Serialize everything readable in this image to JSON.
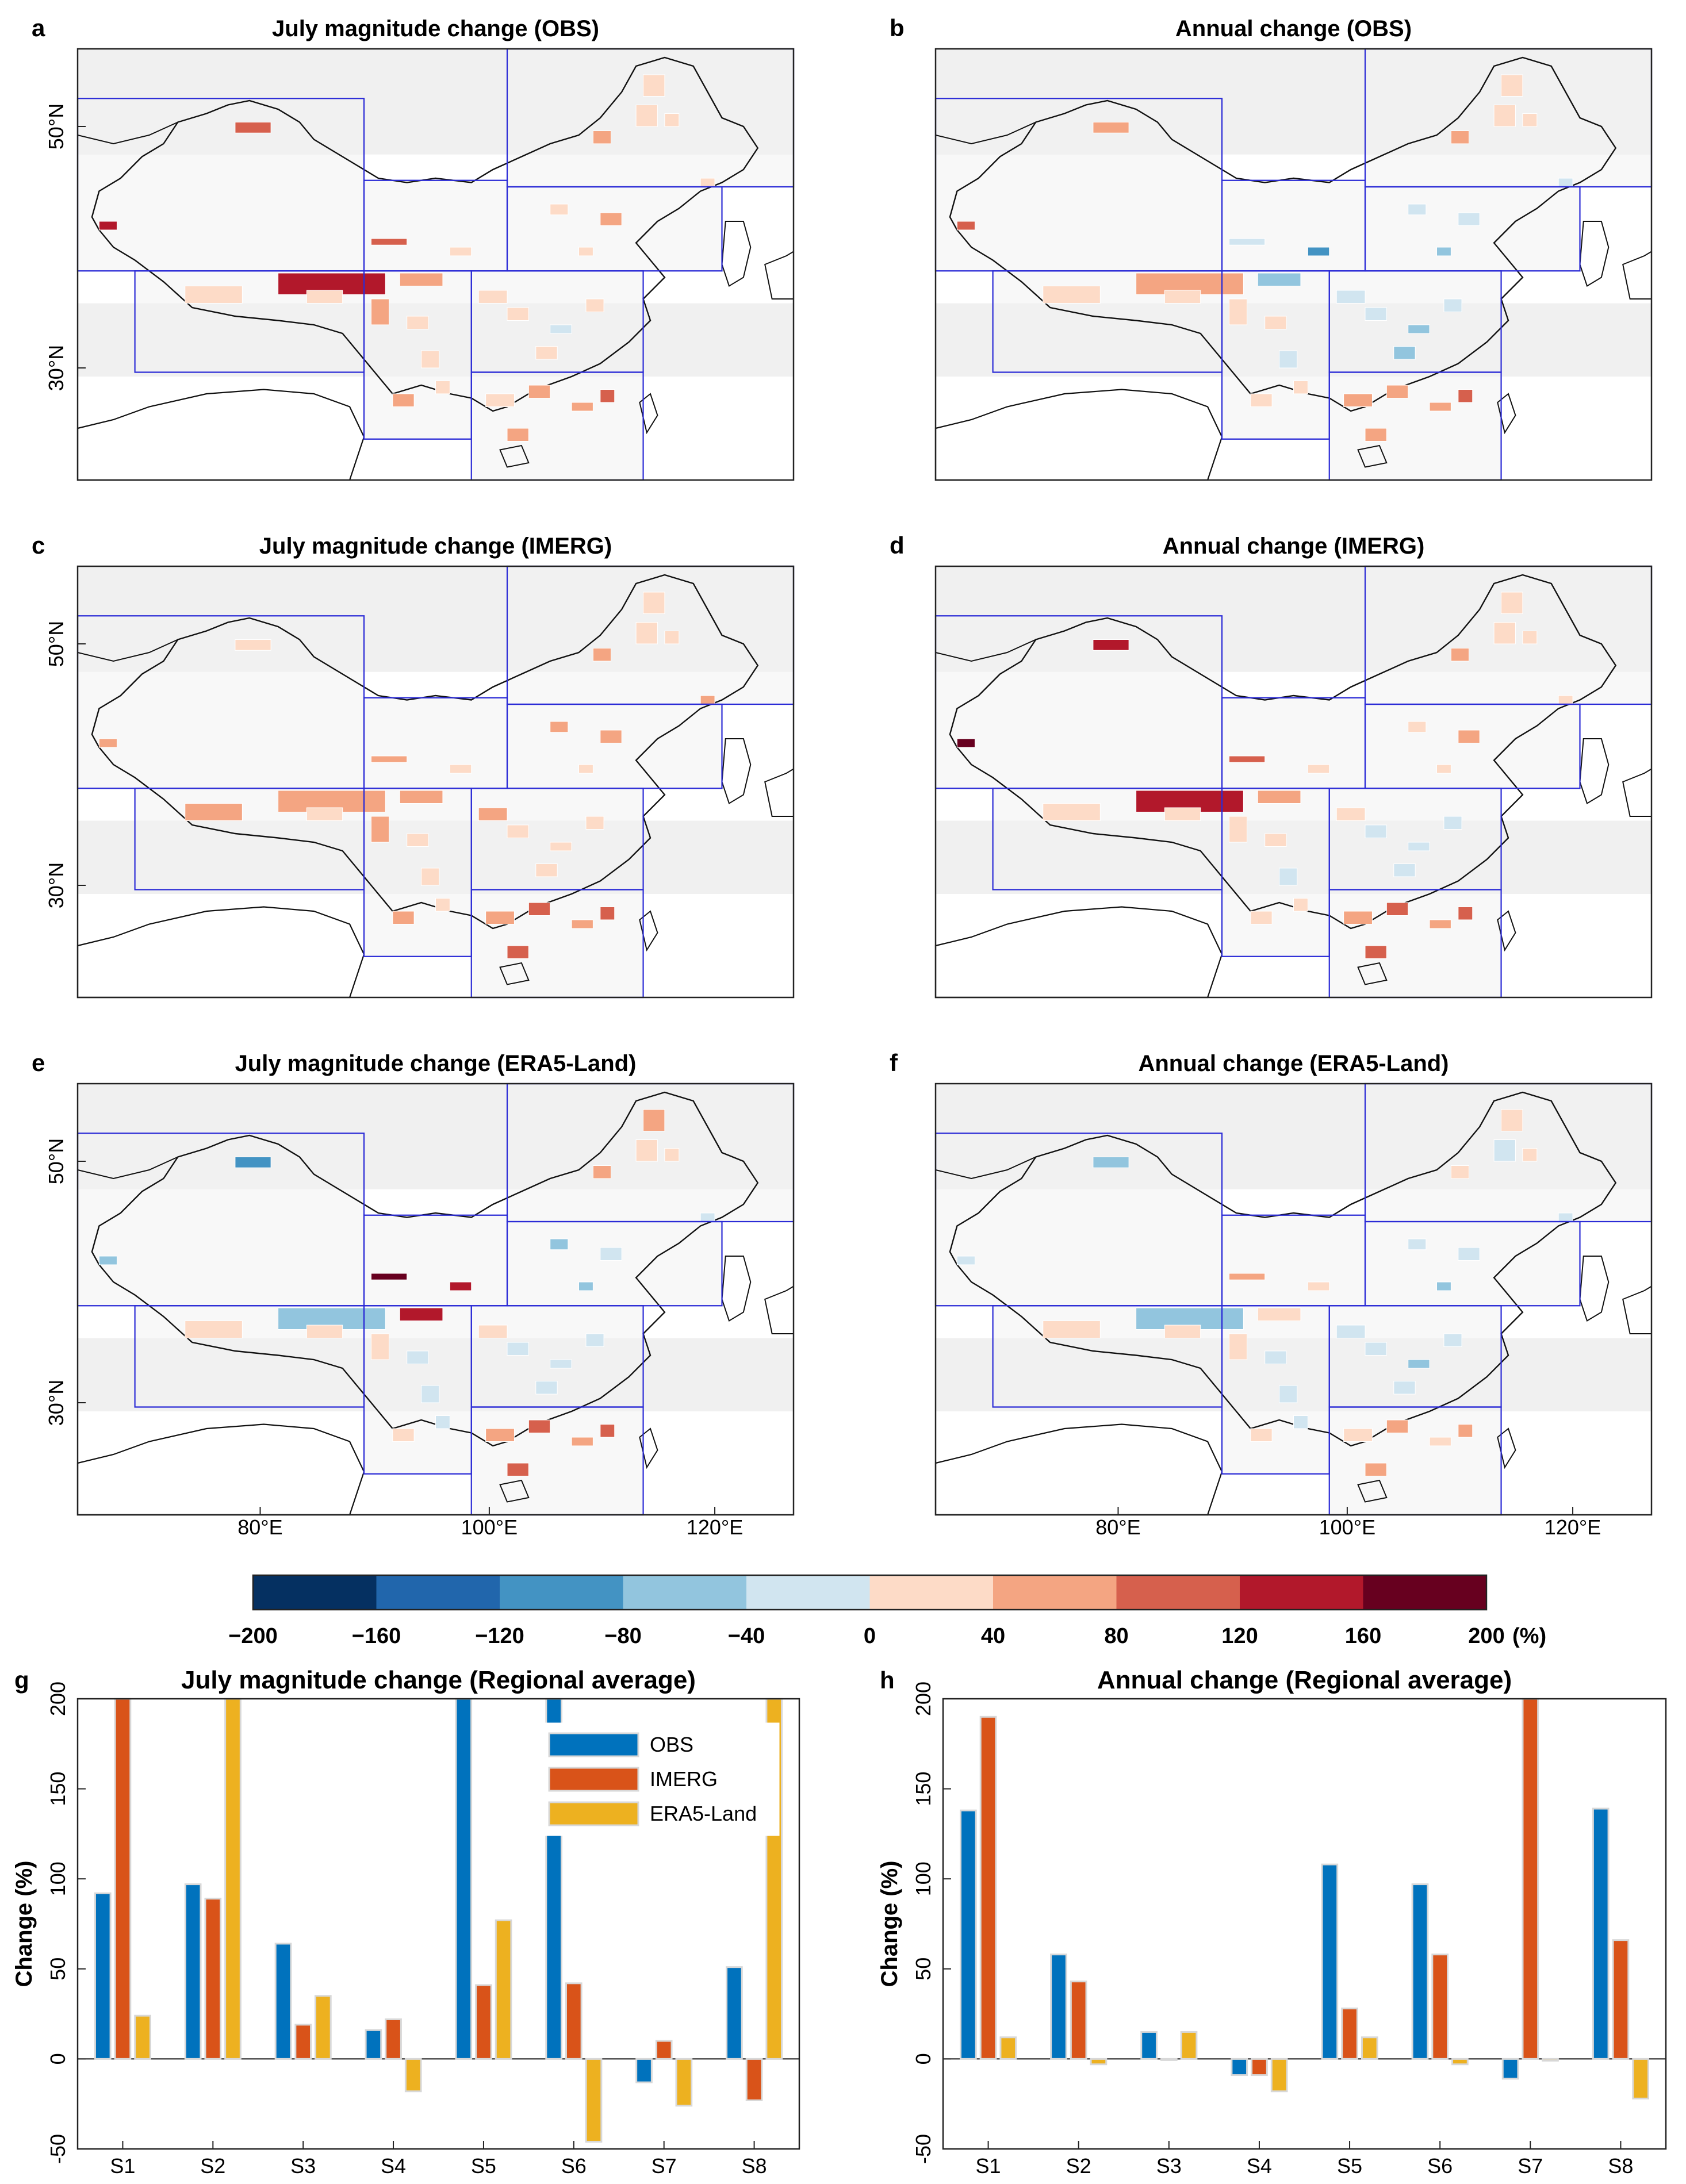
{
  "map_panels": [
    {
      "letter": "a",
      "title": "July magnitude change (OBS)",
      "fill": [
        140,
        60,
        15,
        35,
        25,
        30,
        10,
        60
      ]
    },
    {
      "letter": "b",
      "title": "Annual change (OBS)",
      "fill": [
        80,
        -60,
        25,
        -20,
        30,
        10,
        -40,
        70
      ]
    },
    {
      "letter": "c",
      "title": "July magnitude change (IMERG)",
      "fill": [
        60,
        50,
        20,
        60,
        35,
        30,
        20,
        80
      ]
    },
    {
      "letter": "d",
      "title": "Annual change (IMERG)",
      "fill": [
        170,
        60,
        20,
        40,
        20,
        10,
        -20,
        90
      ]
    },
    {
      "letter": "e",
      "title": "July magnitude change (ERA5-Land)",
      "fill": [
        -60,
        150,
        30,
        -30,
        20,
        -10,
        -20,
        90
      ]
    },
    {
      "letter": "f",
      "title": "Annual change (ERA5-Land)",
      "fill": [
        -30,
        40,
        10,
        -20,
        30,
        -10,
        -30,
        50
      ]
    }
  ],
  "map_axes": {
    "lat_labels": [
      "50°N",
      "30°N"
    ],
    "lon_labels": [
      "80°E",
      "100°E",
      "120°E"
    ]
  },
  "colorbar": {
    "colors": [
      "#053061",
      "#2166ac",
      "#4393c3",
      "#92c5de",
      "#d1e5f0",
      "#fddbc7",
      "#f4a582",
      "#d6604d",
      "#b2182b",
      "#67001f"
    ],
    "ticks": [
      "−200",
      "−160",
      "−120",
      "−80",
      "−40",
      "0",
      "40",
      "80",
      "120",
      "160",
      "200"
    ],
    "unit": "(%)"
  },
  "chart_data": [
    {
      "letter": "g",
      "type": "bar",
      "title": "July magnitude change (Regional average)",
      "ylabel": "Change (%)",
      "categories": [
        "S1",
        "S2",
        "S3",
        "S4",
        "S5",
        "S6",
        "S7",
        "S8"
      ],
      "ylim": [
        -50,
        200
      ],
      "yticks": [
        "-50",
        "0",
        "50",
        "100",
        "150",
        "200"
      ],
      "series": [
        {
          "name": "OBS",
          "color": "#0072bd",
          "values": [
            92,
            97,
            64,
            16,
            200,
            200,
            -13,
            51
          ]
        },
        {
          "name": "IMERG",
          "color": "#d95319",
          "values": [
            200,
            89,
            19,
            22,
            41,
            42,
            10,
            -23
          ]
        },
        {
          "name": "ERA5-Land",
          "color": "#edb120",
          "values": [
            24,
            200,
            35,
            -18,
            77,
            -46,
            -26,
            200
          ]
        }
      ],
      "legend": "top-right"
    },
    {
      "letter": "h",
      "type": "bar",
      "title": "Annual change (Regional average)",
      "ylabel": "Change (%)",
      "categories": [
        "S1",
        "S2",
        "S3",
        "S4",
        "S5",
        "S6",
        "S7",
        "S8"
      ],
      "ylim": [
        -50,
        200
      ],
      "yticks": [
        "-50",
        "0",
        "50",
        "100",
        "150",
        "200"
      ],
      "series": [
        {
          "name": "OBS",
          "color": "#0072bd",
          "values": [
            138,
            58,
            15,
            -9,
            108,
            97,
            -11,
            139
          ]
        },
        {
          "name": "IMERG",
          "color": "#d95319",
          "values": [
            190,
            43,
            0,
            -9,
            28,
            58,
            200,
            66
          ]
        },
        {
          "name": "ERA5-Land",
          "color": "#edb120",
          "values": [
            12,
            -3,
            15,
            -18,
            12,
            -3,
            -1,
            -22
          ]
        }
      ]
    }
  ]
}
